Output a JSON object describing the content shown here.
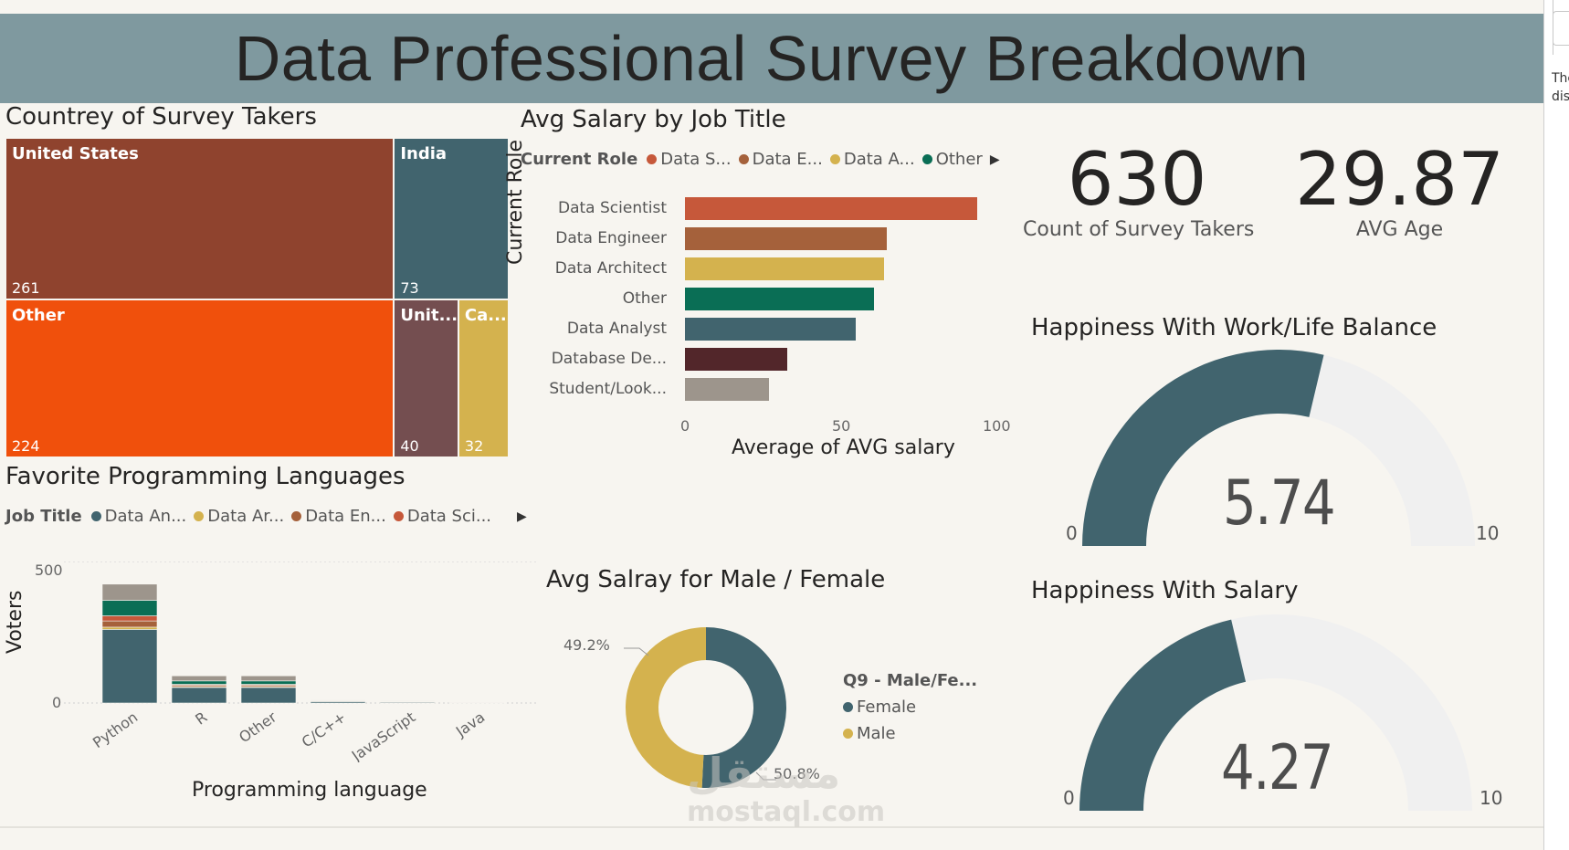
{
  "header": {
    "title": "Data Professional Survey Breakdown"
  },
  "side_panel": {
    "text_line1": "The",
    "text_line2": "dis"
  },
  "treemap": {
    "title": "Countrey of Survey Takers",
    "tiles": [
      {
        "label": "United States",
        "value": "261",
        "color": "#8f432e"
      },
      {
        "label": "India",
        "value": "73",
        "color": "#41646e"
      },
      {
        "label": "Other",
        "value": "224",
        "color": "#f0500c"
      },
      {
        "label": "Unit...",
        "value": "40",
        "color": "#744e50"
      },
      {
        "label": "Ca...",
        "value": "32",
        "color": "#d4b24e"
      }
    ]
  },
  "salary_by_job": {
    "title": "Avg Salary by Job Title",
    "legend_title": "Current Role",
    "legend": [
      {
        "label": "Data S...",
        "color": "#c6583a"
      },
      {
        "label": "Data E...",
        "color": "#a5613b"
      },
      {
        "label": "Data A...",
        "color": "#d4b24e"
      },
      {
        "label": "Other",
        "color": "#0a6e55"
      }
    ],
    "y_axis_title": "Current Role",
    "x_axis_title": "Average of AVG salary",
    "x_ticks": [
      "0",
      "50",
      "100"
    ]
  },
  "kpis": {
    "count": {
      "value": "630",
      "label": "Count of Survey Takers"
    },
    "age": {
      "value": "29.87",
      "label": "AVG Age"
    }
  },
  "gauge_wlb": {
    "title": "Happiness With Work/Life Balance",
    "value": "5.74",
    "min": "0",
    "max": "10",
    "fraction": 0.574,
    "color": "#41646e",
    "track": "#f0f0f0"
  },
  "gauge_salary": {
    "title": "Happiness With Salary",
    "value": "4.27",
    "min": "0",
    "max": "10",
    "fraction": 0.427,
    "color": "#41646e",
    "track": "#f0f0f0"
  },
  "languages": {
    "title": "Favorite Programming Languages",
    "legend_title": "Job Title",
    "legend": [
      {
        "label": "Data An...",
        "color": "#41646e"
      },
      {
        "label": "Data Ar...",
        "color": "#d4b24e"
      },
      {
        "label": "Data En...",
        "color": "#a5613b"
      },
      {
        "label": "Data Sci...",
        "color": "#c6583a"
      }
    ],
    "y_axis_title": "Voters",
    "x_axis_title": "Programming language",
    "y_ticks": [
      "500",
      "0"
    ]
  },
  "gender_salary": {
    "title": "Avg Salray for Male / Female",
    "legend_title": "Q9 - Male/Fe...",
    "legend": [
      {
        "label": "Female",
        "color": "#41646e"
      },
      {
        "label": "Male",
        "color": "#d4b24e"
      }
    ],
    "pct_male": "49.2%",
    "pct_female": "50.8%"
  },
  "watermark": {
    "line1": "مستقل",
    "line2": "mostaql.com"
  },
  "chart_data": [
    {
      "type": "treemap",
      "title": "Countrey of Survey Takers",
      "categories": [
        "United States",
        "Other",
        "India",
        "Unit...",
        "Ca..."
      ],
      "values": [
        261,
        224,
        73,
        40,
        32
      ]
    },
    {
      "type": "bar",
      "orientation": "horizontal",
      "title": "Avg Salary by Job Title",
      "categories": [
        "Data Scientist",
        "Data Engineer",
        "Data Architect",
        "Other",
        "Data Analyst",
        "Database De...",
        "Student/Look..."
      ],
      "values": [
        94,
        65,
        64,
        61,
        55,
        33,
        27
      ],
      "colors": [
        "#c6583a",
        "#a5613b",
        "#d4b24e",
        "#0a6e55",
        "#41646e",
        "#52262a",
        "#9d958c"
      ],
      "xlabel": "Average of AVG salary",
      "ylabel": "Current Role",
      "xlim": [
        0,
        100
      ]
    },
    {
      "type": "bar",
      "stacked": true,
      "title": "Favorite Programming Languages",
      "categories": [
        "Python",
        "R",
        "Other",
        "C/C++",
        "JavaScript",
        "Java"
      ],
      "series": [
        {
          "name": "Data An...",
          "color": "#41646e",
          "values": [
            260,
            55,
            55,
            5,
            3,
            1
          ]
        },
        {
          "name": "Data Ar...",
          "color": "#d4b24e",
          "values": [
            8,
            3,
            3,
            0,
            0,
            0
          ]
        },
        {
          "name": "Data En...",
          "color": "#a5613b",
          "values": [
            22,
            5,
            5,
            1,
            1,
            0
          ]
        },
        {
          "name": "Data Sci...",
          "color": "#c6583a",
          "values": [
            18,
            3,
            3,
            1,
            1,
            0
          ]
        },
        {
          "color": "#0a6e55",
          "values": [
            55,
            12,
            12,
            1,
            1,
            0
          ]
        },
        {
          "color": "#9d958c",
          "values": [
            57,
            18,
            18,
            2,
            2,
            1
          ]
        }
      ],
      "xlabel": "Programming language",
      "ylabel": "Voters",
      "ylim": [
        0,
        500
      ]
    },
    {
      "type": "pie",
      "donut": true,
      "title": "Avg Salray for Male / Female",
      "categories": [
        "Female",
        "Male"
      ],
      "values": [
        50.8,
        49.2
      ],
      "colors": [
        "#41646e",
        "#d4b24e"
      ]
    }
  ]
}
